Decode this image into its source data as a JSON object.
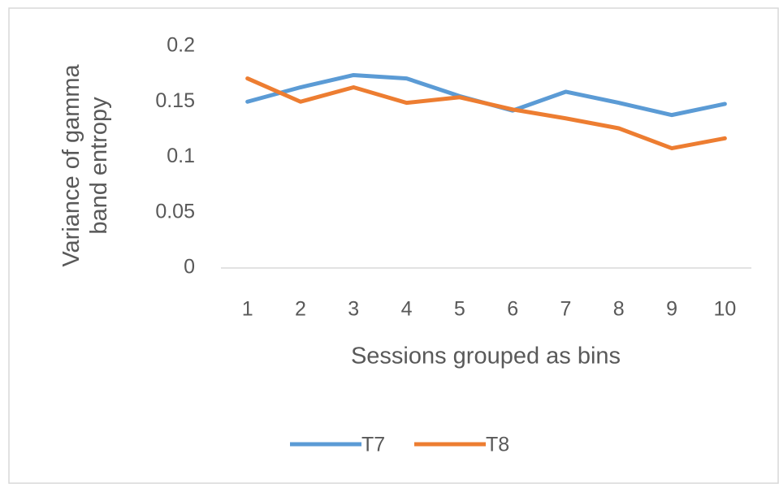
{
  "chart_data": {
    "type": "line",
    "x_label": "Sessions grouped as bins",
    "y_label": "Variance of gamma band entropy",
    "categories": [
      "1",
      "2",
      "3",
      "4",
      "5",
      "6",
      "7",
      "8",
      "9",
      "10"
    ],
    "series": [
      {
        "name": "T7",
        "color": "#5b9bd5",
        "values": [
          0.15,
          0.163,
          0.174,
          0.171,
          0.155,
          0.142,
          0.159,
          0.149,
          0.138,
          0.148
        ]
      },
      {
        "name": "T8",
        "color": "#ed7d31",
        "values": [
          0.171,
          0.15,
          0.163,
          0.149,
          0.154,
          0.143,
          0.135,
          0.126,
          0.108,
          0.117
        ]
      }
    ],
    "ylim": [
      0,
      0.2
    ],
    "yticks": [
      0,
      0.05,
      0.1,
      0.15,
      0.2
    ],
    "grid": false,
    "legend": "bottom"
  }
}
